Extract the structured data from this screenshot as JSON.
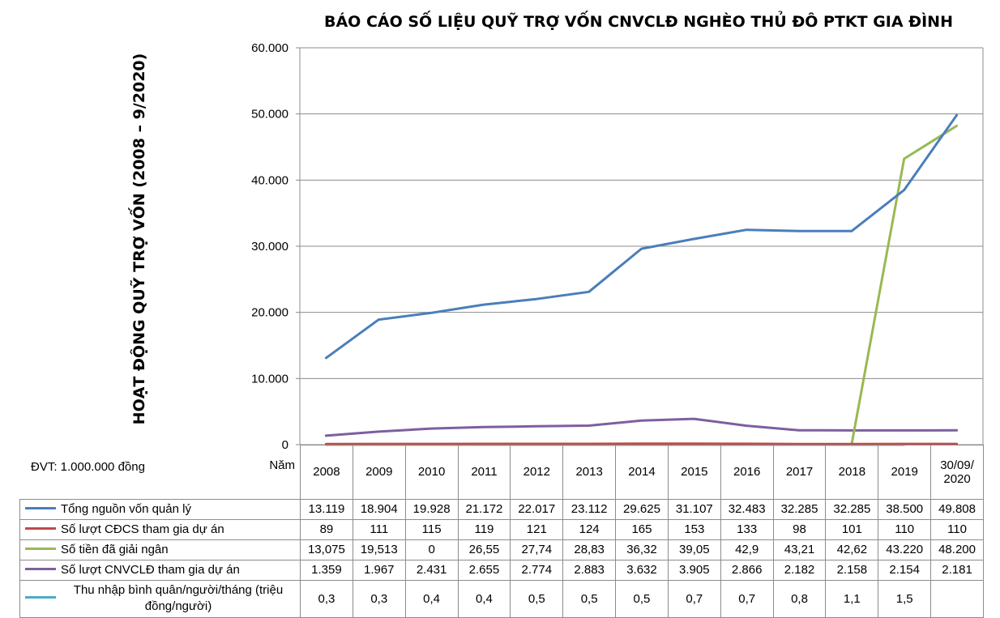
{
  "chart_data": {
    "type": "line",
    "title": "BÁO CÁO SỐ LIỆU QUỸ TRỢ VỐN CNVCLĐ NGHÈO THỦ ĐÔ PTKT GIA ĐÌNH",
    "ylabel": "HOẠT ĐỘNG QUỸ TRỢ VỐN (2008 – 9/2020)",
    "unit_note": "ĐVT: 1.000.000 đồng",
    "table_header_label": "Năm",
    "ylim": [
      0,
      60000
    ],
    "y_ticks": [
      0,
      10000,
      20000,
      30000,
      40000,
      50000,
      60000
    ],
    "y_tick_labels": [
      "0",
      "10.000",
      "20.000",
      "30.000",
      "40.000",
      "50.000",
      "60.000"
    ],
    "grid": true,
    "categories": [
      "2008",
      "2009",
      "2010",
      "2011",
      "2012",
      "2013",
      "2014",
      "2015",
      "2016",
      "2017",
      "2018",
      "2019",
      "30/09/\n2020"
    ],
    "series": [
      {
        "name": "Tổng nguồn vốn quản lý",
        "color": "#4a7ebb",
        "values": [
          13119,
          18904,
          19928,
          21172,
          22017,
          23112,
          29625,
          31107,
          32483,
          32285,
          32285,
          38500,
          49808
        ],
        "labels": [
          "13.119",
          "18.904",
          "19.928",
          "21.172",
          "22.017",
          "23.112",
          "29.625",
          "31.107",
          "32.483",
          "32.285",
          "32.285",
          "38.500",
          "49.808"
        ]
      },
      {
        "name": "Số lượt CĐCS tham gia dự án",
        "color": "#be4b48",
        "values": [
          89,
          111,
          115,
          119,
          121,
          124,
          165,
          153,
          133,
          98,
          101,
          110,
          110
        ],
        "labels": [
          "89",
          "111",
          "115",
          "119",
          "121",
          "124",
          "165",
          "153",
          "133",
          "98",
          "101",
          "110",
          "110"
        ]
      },
      {
        "name": "Số tiền đã giải ngân",
        "color": "#98b954",
        "values": [
          13.075,
          19.513,
          0,
          26.55,
          27.74,
          28.83,
          36.32,
          39.05,
          42.9,
          43.21,
          42.62,
          43220,
          48200
        ],
        "labels": [
          "13,075",
          "19,513",
          "0",
          "26,55",
          "27,74",
          "28,83",
          "36,32",
          "39,05",
          "42,9",
          "43,21",
          "42,62",
          "43.220",
          "48.200"
        ]
      },
      {
        "name": "Số lượt CNVCLĐ tham gia dự án",
        "color": "#7d5fa0",
        "values": [
          1359,
          1967,
          2431,
          2655,
          2774,
          2883,
          3632,
          3905,
          2866,
          2182,
          2158,
          2154,
          2181
        ],
        "labels": [
          "1.359",
          "1.967",
          "2.431",
          "2.655",
          "2.774",
          "2.883",
          "3.632",
          "3.905",
          "2.866",
          "2.182",
          "2.158",
          "2.154",
          "2.181"
        ]
      },
      {
        "name": "Thu nhập bình quân/người/tháng (triệu đồng/người)",
        "color": "#4bacc6",
        "values": [
          0.3,
          0.3,
          0.4,
          0.4,
          0.5,
          0.5,
          0.5,
          0.7,
          0.7,
          0.8,
          1.1,
          1.5,
          null
        ],
        "labels": [
          "0,3",
          "0,3",
          "0,4",
          "0,4",
          "0,5",
          "0,5",
          "0,5",
          "0,7",
          "0,7",
          "0,8",
          "1,1",
          "1,5",
          ""
        ]
      }
    ]
  }
}
